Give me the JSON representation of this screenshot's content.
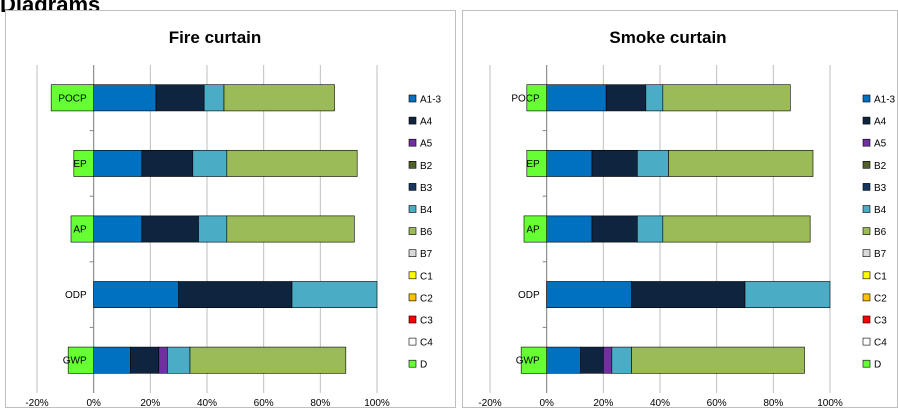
{
  "page": {
    "heading": "Diagrams"
  },
  "chart_data": [
    {
      "type": "bar",
      "orientation": "horizontal",
      "stacked": true,
      "title": "Fire curtain",
      "categories": [
        "POCP",
        "EP",
        "AP",
        "ODP",
        "GWP"
      ],
      "xlim": [
        -0.2,
        1.0
      ],
      "x_ticks": [
        -0.2,
        0,
        0.2,
        0.4,
        0.6,
        0.8,
        1.0
      ],
      "x_tick_labels": [
        "-20%",
        "0%",
        "20%",
        "40%",
        "60%",
        "80%",
        "100%"
      ],
      "grid": "vertical",
      "legend_position": "right",
      "series": [
        {
          "name": "A1-3",
          "color": "#0070C0",
          "values": [
            0.22,
            0.17,
            0.17,
            0.3,
            0.13
          ]
        },
        {
          "name": "A4",
          "color": "#0F243E",
          "values": [
            0.17,
            0.18,
            0.2,
            0.4,
            0.1
          ]
        },
        {
          "name": "A5",
          "color": "#7030A0",
          "values": [
            0.0,
            0.0,
            0.0,
            0.0,
            0.03
          ]
        },
        {
          "name": "B2",
          "color": "#4F6228",
          "values": [
            0.0,
            0.0,
            0.0,
            0.0,
            0.0
          ]
        },
        {
          "name": "B3",
          "color": "#17375E",
          "values": [
            0.0,
            0.0,
            0.0,
            0.0,
            0.0
          ]
        },
        {
          "name": "B4",
          "color": "#4BACC6",
          "values": [
            0.07,
            0.12,
            0.1,
            0.3,
            0.08
          ]
        },
        {
          "name": "B6",
          "color": "#9BBB59",
          "values": [
            0.39,
            0.46,
            0.45,
            0.0,
            0.55
          ]
        },
        {
          "name": "B7",
          "color": "#D9D9D9",
          "values": [
            0.0,
            0.0,
            0.0,
            0.0,
            0.0
          ]
        },
        {
          "name": "C1",
          "color": "#FFFF00",
          "values": [
            0.0,
            0.0,
            0.0,
            0.0,
            0.0
          ]
        },
        {
          "name": "C2",
          "color": "#FFC000",
          "values": [
            0.0,
            0.0,
            0.0,
            0.0,
            0.0
          ]
        },
        {
          "name": "C3",
          "color": "#FF0000",
          "values": [
            0.0,
            0.0,
            0.0,
            0.0,
            0.0
          ]
        },
        {
          "name": "C4",
          "color": "#FFFFFF",
          "values": [
            0.0,
            0.0,
            0.0,
            0.0,
            0.0
          ]
        },
        {
          "name": "D",
          "color": "#66FF33",
          "values": [
            -0.15,
            -0.07,
            -0.08,
            0.0,
            -0.09
          ]
        }
      ]
    },
    {
      "type": "bar",
      "orientation": "horizontal",
      "stacked": true,
      "title": "Smoke curtain",
      "categories": [
        "POCP",
        "EP",
        "AP",
        "ODP",
        "GWP"
      ],
      "xlim": [
        -0.2,
        1.0
      ],
      "x_ticks": [
        -0.2,
        0,
        0.2,
        0.4,
        0.6,
        0.8,
        1.0
      ],
      "x_tick_labels": [
        "-20%",
        "0%",
        "20%",
        "40%",
        "60%",
        "80%",
        "100%"
      ],
      "grid": "vertical",
      "legend_position": "right",
      "series": [
        {
          "name": "A1-3",
          "color": "#0070C0",
          "values": [
            0.21,
            0.16,
            0.16,
            0.3,
            0.12
          ]
        },
        {
          "name": "A4",
          "color": "#0F243E",
          "values": [
            0.14,
            0.16,
            0.16,
            0.4,
            0.08
          ]
        },
        {
          "name": "A5",
          "color": "#7030A0",
          "values": [
            0.0,
            0.0,
            0.0,
            0.0,
            0.03
          ]
        },
        {
          "name": "B2",
          "color": "#4F6228",
          "values": [
            0.0,
            0.0,
            0.0,
            0.0,
            0.0
          ]
        },
        {
          "name": "B3",
          "color": "#17375E",
          "values": [
            0.0,
            0.0,
            0.0,
            0.0,
            0.0
          ]
        },
        {
          "name": "B4",
          "color": "#4BACC6",
          "values": [
            0.06,
            0.11,
            0.09,
            0.3,
            0.07
          ]
        },
        {
          "name": "B6",
          "color": "#9BBB59",
          "values": [
            0.45,
            0.51,
            0.52,
            0.0,
            0.61
          ]
        },
        {
          "name": "B7",
          "color": "#D9D9D9",
          "values": [
            0.0,
            0.0,
            0.0,
            0.0,
            0.0
          ]
        },
        {
          "name": "C1",
          "color": "#FFFF00",
          "values": [
            0.0,
            0.0,
            0.0,
            0.0,
            0.0
          ]
        },
        {
          "name": "C2",
          "color": "#FFC000",
          "values": [
            0.0,
            0.0,
            0.0,
            0.0,
            0.0
          ]
        },
        {
          "name": "C3",
          "color": "#FF0000",
          "values": [
            0.0,
            0.0,
            0.0,
            0.0,
            0.0
          ]
        },
        {
          "name": "C4",
          "color": "#FFFFFF",
          "values": [
            0.0,
            0.0,
            0.0,
            0.0,
            0.0
          ]
        },
        {
          "name": "D",
          "color": "#66FF33",
          "values": [
            -0.07,
            -0.07,
            -0.08,
            0.0,
            -0.09
          ]
        }
      ]
    }
  ]
}
